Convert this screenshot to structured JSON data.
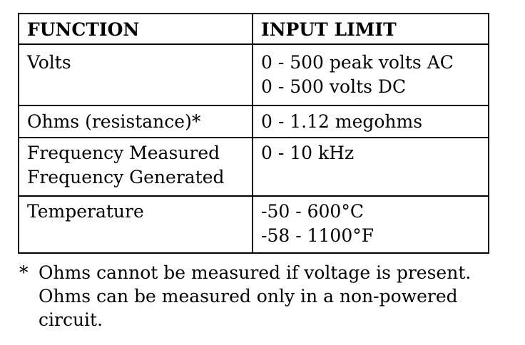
{
  "table": {
    "headers": {
      "function": "FUNCTION",
      "input_limit": "INPUT LIMIT"
    },
    "rows": [
      {
        "function": [
          "Volts"
        ],
        "limit": [
          "0 - 500 peak volts AC",
          "0 - 500 volts DC"
        ]
      },
      {
        "function": [
          "Ohms (resistance)*"
        ],
        "limit": [
          "0 - 1.12 megohms"
        ]
      },
      {
        "function": [
          "Frequency Measured",
          "Frequency Generated"
        ],
        "limit": [
          "0 - 10 kHz"
        ]
      },
      {
        "function": [
          "Temperature"
        ],
        "limit": [
          "-50 - 600°C",
          "-58 - 1100°F"
        ]
      }
    ]
  },
  "footnote": {
    "marker": "*",
    "lines": [
      "Ohms cannot be measured if voltage is present.",
      "Ohms can be measured only in a non-powered",
      "circuit."
    ]
  }
}
